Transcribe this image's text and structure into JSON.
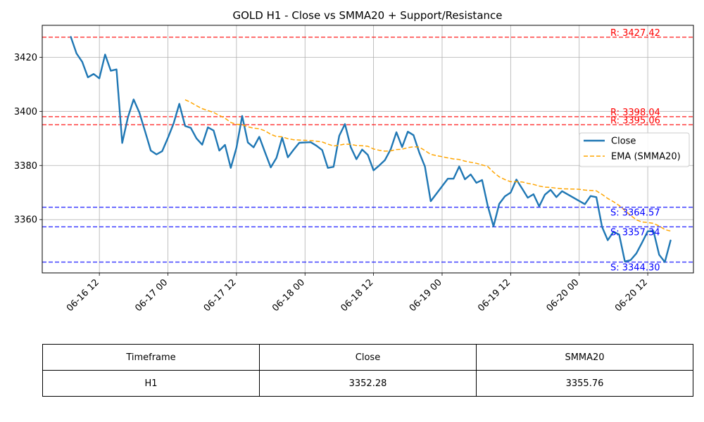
{
  "chart_data": {
    "type": "line",
    "title": "GOLD H1 - Close vs SMMA20 + Support/Resistance",
    "xlabel": "",
    "ylabel": "",
    "ylim": [
      3340.3,
      3431.8
    ],
    "xlim": [
      "06-16 02:00",
      "06-20 20:00"
    ],
    "x_ticks": [
      "06-16 12",
      "06-17 00",
      "06-17 12",
      "06-18 00",
      "06-18 12",
      "06-19 00",
      "06-19 12",
      "06-20 00",
      "06-20 12"
    ],
    "y_ticks": [
      3360,
      3380,
      3400,
      3420
    ],
    "grid": true,
    "legend_position": "right",
    "series": [
      {
        "name": "Close",
        "color": "#1f77b4",
        "style": "solid",
        "points": [
          [
            "06-16 07:00",
            3427.5
          ],
          [
            "06-16 08:00",
            3421.4
          ],
          [
            "06-16 09:00",
            3418.3
          ],
          [
            "06-16 10:00",
            3412.6
          ],
          [
            "06-16 11:00",
            3413.8
          ],
          [
            "06-16 12:00",
            3412.2
          ],
          [
            "06-16 13:00",
            3421.0
          ],
          [
            "06-16 14:00",
            3415.0
          ],
          [
            "06-16 15:00",
            3415.5
          ],
          [
            "06-16 16:00",
            3388.3
          ],
          [
            "06-16 17:00",
            3397.8
          ],
          [
            "06-16 18:00",
            3404.4
          ],
          [
            "06-16 19:00",
            3399.6
          ],
          [
            "06-16 20:00",
            3392.6
          ],
          [
            "06-16 21:00",
            3385.5
          ],
          [
            "06-16 22:00",
            3384.1
          ],
          [
            "06-16 23:00",
            3385.3
          ],
          [
            "06-17 00:00",
            3390.2
          ],
          [
            "06-17 01:00",
            3395.5
          ],
          [
            "06-17 02:00",
            3402.8
          ],
          [
            "06-17 03:00",
            3394.6
          ],
          [
            "06-17 04:00",
            3393.9
          ],
          [
            "06-17 05:00",
            3390.0
          ],
          [
            "06-17 06:00",
            3387.7
          ],
          [
            "06-17 07:00",
            3394.1
          ],
          [
            "06-17 08:00",
            3392.9
          ],
          [
            "06-17 09:00",
            3385.5
          ],
          [
            "06-17 10:00",
            3387.6
          ],
          [
            "06-17 11:00",
            3379.1
          ],
          [
            "06-17 12:00",
            3386.6
          ],
          [
            "06-17 13:00",
            3398.3
          ],
          [
            "06-17 14:00",
            3388.5
          ],
          [
            "06-17 15:00",
            3386.7
          ],
          [
            "06-17 16:00",
            3390.6
          ],
          [
            "06-17 17:00",
            3384.9
          ],
          [
            "06-17 18:00",
            3379.3
          ],
          [
            "06-17 19:00",
            3382.8
          ],
          [
            "06-17 20:00",
            3390.3
          ],
          [
            "06-17 21:00",
            3383.0
          ],
          [
            "06-17 22:00",
            3385.8
          ],
          [
            "06-17 23:00",
            3388.4
          ],
          [
            "06-18 00:00",
            3388.5
          ],
          [
            "06-18 01:00",
            3388.6
          ],
          [
            "06-18 02:00",
            3387.3
          ],
          [
            "06-18 03:00",
            3385.7
          ],
          [
            "06-18 04:00",
            3379.1
          ],
          [
            "06-18 05:00",
            3379.5
          ],
          [
            "06-18 06:00",
            3391.0
          ],
          [
            "06-18 07:00",
            3395.3
          ],
          [
            "06-18 08:00",
            3386.8
          ],
          [
            "06-18 09:00",
            3382.3
          ],
          [
            "06-18 10:00",
            3385.9
          ],
          [
            "06-18 11:00",
            3383.9
          ],
          [
            "06-18 12:00",
            3378.2
          ],
          [
            "06-18 13:00",
            3380.0
          ],
          [
            "06-18 14:00",
            3382.0
          ],
          [
            "06-18 15:00",
            3386.0
          ],
          [
            "06-18 16:00",
            3392.3
          ],
          [
            "06-18 17:00",
            3386.8
          ],
          [
            "06-18 18:00",
            3392.5
          ],
          [
            "06-18 19:00",
            3391.2
          ],
          [
            "06-18 20:00",
            3384.8
          ],
          [
            "06-18 21:00",
            3379.6
          ],
          [
            "06-18 22:00",
            3366.8
          ],
          [
            "06-19 01:00",
            3375.1
          ],
          [
            "06-19 02:00",
            3375.1
          ],
          [
            "06-19 03:00",
            3379.6
          ],
          [
            "06-19 04:00",
            3374.9
          ],
          [
            "06-19 05:00",
            3376.7
          ],
          [
            "06-19 06:00",
            3373.6
          ],
          [
            "06-19 07:00",
            3374.6
          ],
          [
            "06-19 08:00",
            3365.0
          ],
          [
            "06-19 09:00",
            3357.5
          ],
          [
            "06-19 10:00",
            3365.8
          ],
          [
            "06-19 11:00",
            3368.6
          ],
          [
            "06-19 12:00",
            3370.0
          ],
          [
            "06-19 13:00",
            3374.8
          ],
          [
            "06-19 14:00",
            3371.5
          ],
          [
            "06-19 15:00",
            3368.1
          ],
          [
            "06-19 16:00",
            3369.4
          ],
          [
            "06-19 17:00",
            3364.9
          ],
          [
            "06-19 18:00",
            3369.2
          ],
          [
            "06-19 19:00",
            3371.0
          ],
          [
            "06-19 20:00",
            3368.3
          ],
          [
            "06-19 21:00",
            3370.5
          ],
          [
            "06-20 00:00",
            3366.9
          ],
          [
            "06-20 01:00",
            3365.7
          ],
          [
            "06-20 02:00",
            3368.7
          ],
          [
            "06-20 03:00",
            3368.3
          ],
          [
            "06-20 04:00",
            3357.3
          ],
          [
            "06-20 05:00",
            3352.4
          ],
          [
            "06-20 06:00",
            3355.5
          ],
          [
            "06-20 07:00",
            3354.5
          ],
          [
            "06-20 08:00",
            3344.5
          ],
          [
            "06-20 09:00",
            3345.0
          ],
          [
            "06-20 10:00",
            3347.5
          ],
          [
            "06-20 11:00",
            3351.5
          ],
          [
            "06-20 12:00",
            3355.7
          ],
          [
            "06-20 13:00",
            3355.8
          ],
          [
            "06-20 14:00",
            3347.0
          ],
          [
            "06-20 15:00",
            3344.3
          ],
          [
            "06-20 16:00",
            3352.28
          ]
        ]
      },
      {
        "name": "EMA (SMMA20)",
        "color": "#ffa500",
        "style": "dashed",
        "points": [
          [
            "06-17 03:00",
            3404.3
          ],
          [
            "06-17 04:00",
            3403.3
          ],
          [
            "06-17 05:00",
            3402.1
          ],
          [
            "06-17 06:00",
            3401.0
          ],
          [
            "06-17 07:00",
            3400.3
          ],
          [
            "06-17 08:00",
            3399.6
          ],
          [
            "06-17 09:00",
            3398.5
          ],
          [
            "06-17 10:00",
            3397.5
          ],
          [
            "06-17 11:00",
            3395.9
          ],
          [
            "06-17 12:00",
            3395.2
          ],
          [
            "06-17 13:00",
            3395.1
          ],
          [
            "06-17 14:00",
            3394.3
          ],
          [
            "06-17 15:00",
            3393.8
          ],
          [
            "06-17 16:00",
            3393.6
          ],
          [
            "06-17 17:00",
            3392.8
          ],
          [
            "06-17 18:00",
            3391.5
          ],
          [
            "06-17 19:00",
            3390.7
          ],
          [
            "06-17 20:00",
            3390.6
          ],
          [
            "06-17 21:00",
            3389.9
          ],
          [
            "06-17 22:00",
            3389.5
          ],
          [
            "06-17 23:00",
            3389.4
          ],
          [
            "06-18 00:00",
            3389.3
          ],
          [
            "06-18 01:00",
            3389.2
          ],
          [
            "06-18 02:00",
            3389.0
          ],
          [
            "06-18 03:00",
            3388.7
          ],
          [
            "06-18 04:00",
            3387.9
          ],
          [
            "06-18 05:00",
            3387.2
          ],
          [
            "06-18 06:00",
            3387.5
          ],
          [
            "06-18 07:00",
            3387.9
          ],
          [
            "06-18 08:00",
            3387.8
          ],
          [
            "06-18 09:00",
            3387.4
          ],
          [
            "06-18 10:00",
            3387.3
          ],
          [
            "06-18 11:00",
            3387.1
          ],
          [
            "06-18 12:00",
            3386.1
          ],
          [
            "06-18 13:00",
            3385.6
          ],
          [
            "06-18 14:00",
            3385.3
          ],
          [
            "06-18 15:00",
            3385.4
          ],
          [
            "06-18 16:00",
            3385.9
          ],
          [
            "06-18 17:00",
            3386.0
          ],
          [
            "06-18 18:00",
            3386.6
          ],
          [
            "06-18 19:00",
            3386.9
          ],
          [
            "06-18 20:00",
            3386.8
          ],
          [
            "06-18 21:00",
            3385.5
          ],
          [
            "06-18 22:00",
            3384.1
          ],
          [
            "06-19 01:00",
            3382.8
          ],
          [
            "06-19 02:00",
            3382.4
          ],
          [
            "06-19 03:00",
            3382.2
          ],
          [
            "06-19 04:00",
            3381.6
          ],
          [
            "06-19 05:00",
            3381.2
          ],
          [
            "06-19 06:00",
            3380.8
          ],
          [
            "06-19 07:00",
            3380.2
          ],
          [
            "06-19 08:00",
            3379.6
          ],
          [
            "06-19 09:00",
            3377.5
          ],
          [
            "06-19 10:00",
            3375.8
          ],
          [
            "06-19 11:00",
            3374.8
          ],
          [
            "06-19 12:00",
            3374.0
          ],
          [
            "06-19 13:00",
            3374.0
          ],
          [
            "06-19 14:00",
            3373.9
          ],
          [
            "06-19 15:00",
            3373.4
          ],
          [
            "06-19 16:00",
            3373.0
          ],
          [
            "06-19 17:00",
            3372.4
          ],
          [
            "06-19 18:00",
            3372.0
          ],
          [
            "06-19 19:00",
            3371.9
          ],
          [
            "06-19 20:00",
            3371.6
          ],
          [
            "06-19 21:00",
            3371.4
          ],
          [
            "06-20 00:00",
            3371.2
          ],
          [
            "06-20 01:00",
            3370.9
          ],
          [
            "06-20 02:00",
            3370.8
          ],
          [
            "06-20 03:00",
            3370.6
          ],
          [
            "06-20 04:00",
            3369.3
          ],
          [
            "06-20 05:00",
            3367.8
          ],
          [
            "06-20 06:00",
            3366.6
          ],
          [
            "06-20 07:00",
            3365.2
          ],
          [
            "06-20 08:00",
            3363.4
          ],
          [
            "06-20 09:00",
            3361.6
          ],
          [
            "06-20 10:00",
            3359.9
          ],
          [
            "06-20 11:00",
            3359.1
          ],
          [
            "06-20 12:00",
            3358.9
          ],
          [
            "06-20 13:00",
            3358.6
          ],
          [
            "06-20 14:00",
            3357.6
          ],
          [
            "06-20 15:00",
            3356.3
          ],
          [
            "06-20 16:00",
            3355.76
          ]
        ]
      }
    ],
    "levels": [
      {
        "kind": "resistance",
        "value": 3427.42,
        "label": "R: 3427.42",
        "color": "#ff0000"
      },
      {
        "kind": "resistance",
        "value": 3398.04,
        "label": "R: 3398.04",
        "color": "#ff0000"
      },
      {
        "kind": "resistance",
        "value": 3395.06,
        "label": "R: 3395.06",
        "color": "#ff0000"
      },
      {
        "kind": "support",
        "value": 3364.57,
        "label": "S: 3364.57",
        "color": "#0000ff"
      },
      {
        "kind": "support",
        "value": 3357.34,
        "label": "S: 3357.34",
        "color": "#0000ff"
      },
      {
        "kind": "support",
        "value": 3344.3,
        "label": "S: 3344.30",
        "color": "#0000ff"
      }
    ]
  },
  "table": {
    "headers": [
      "Timeframe",
      "Close",
      "SMMA20"
    ],
    "row": [
      "H1",
      "3352.28",
      "3355.76"
    ]
  }
}
